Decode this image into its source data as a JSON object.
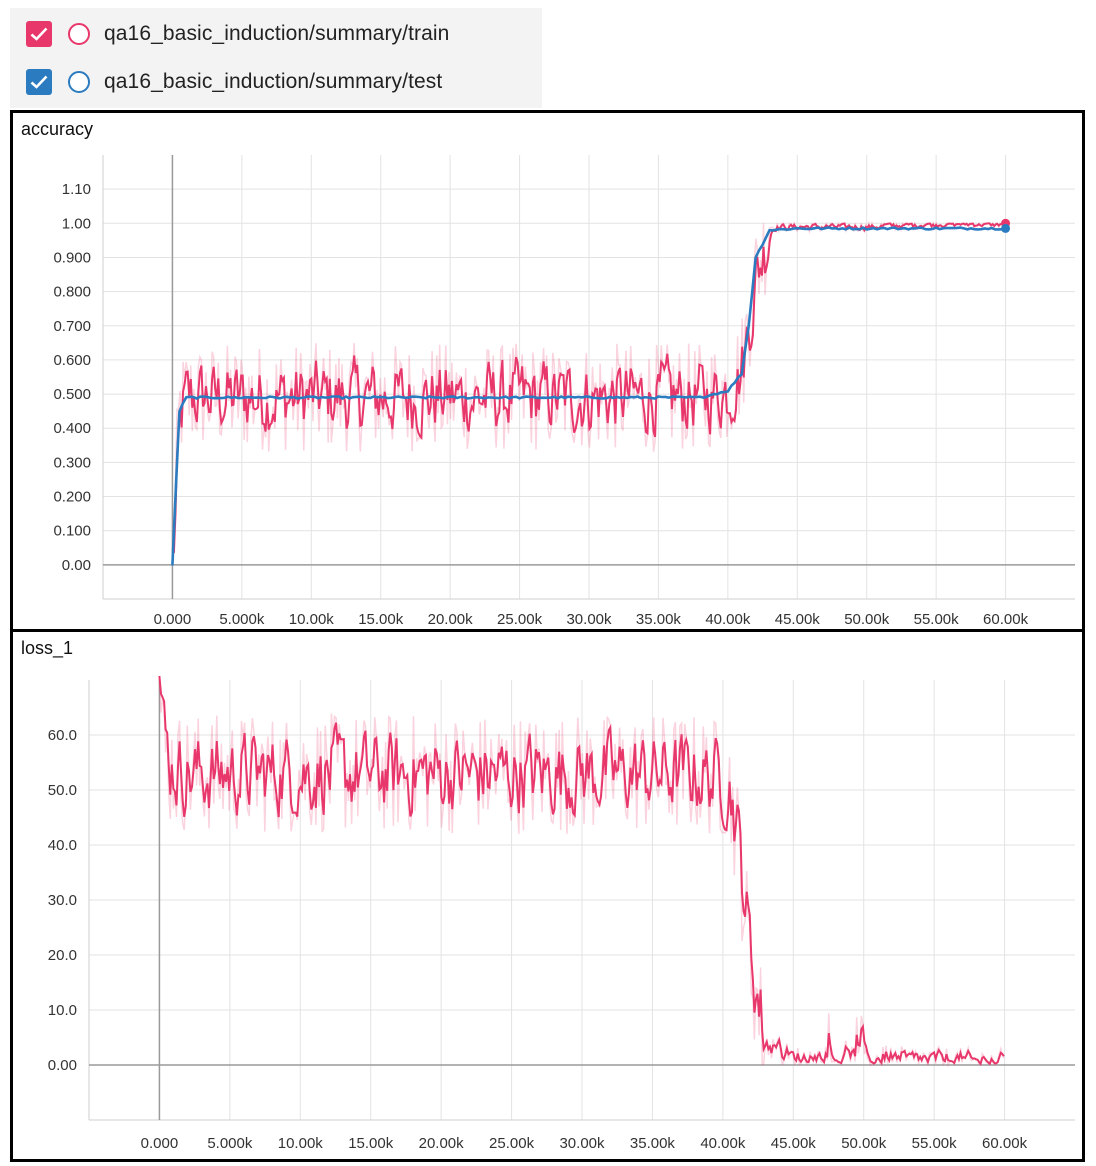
{
  "legend": [
    {
      "label": "qa16_basic_induction/summary/train",
      "color": "#e8376b",
      "checked": true
    },
    {
      "label": "qa16_basic_induction/summary/test",
      "color": "#2a7bbf",
      "checked": true
    }
  ],
  "chart_data": [
    {
      "type": "line",
      "title": "accuracy",
      "xlabel": "",
      "ylabel": "",
      "xlim": [
        -5000,
        65000
      ],
      "ylim": [
        -0.1,
        1.2
      ],
      "x_ticks": [
        0,
        5000,
        10000,
        15000,
        20000,
        25000,
        30000,
        35000,
        40000,
        45000,
        50000,
        55000,
        60000
      ],
      "x_tick_labels": [
        "0.000",
        "5.000k",
        "10.00k",
        "15.00k",
        "20.00k",
        "25.00k",
        "30.00k",
        "35.00k",
        "40.00k",
        "45.00k",
        "50.00k",
        "55.00k",
        "60.00k"
      ],
      "y_ticks": [
        0,
        0.1,
        0.2,
        0.3,
        0.4,
        0.5,
        0.6,
        0.7,
        0.8,
        0.9,
        1.0,
        1.1
      ],
      "y_tick_labels": [
        "0.00",
        "0.100",
        "0.200",
        "0.300",
        "0.400",
        "0.500",
        "0.600",
        "0.700",
        "0.800",
        "0.900",
        "1.00",
        "1.10"
      ],
      "series": [
        {
          "name": "qa16_basic_induction/summary/train",
          "color": "#e8376b",
          "x": [
            0,
            500,
            1000,
            2000,
            5000,
            10000,
            20000,
            30000,
            38000,
            40000,
            41000,
            42000,
            43000,
            45000,
            50000,
            55000,
            60000
          ],
          "y": [
            0.0,
            0.45,
            0.49,
            0.49,
            0.49,
            0.49,
            0.49,
            0.49,
            0.49,
            0.51,
            0.58,
            0.85,
            0.99,
            0.99,
            0.99,
            1.0,
            1.0
          ]
        },
        {
          "name": "qa16_basic_induction/summary/test",
          "color": "#2a7bbf",
          "x": [
            0,
            500,
            1000,
            2000,
            5000,
            10000,
            20000,
            30000,
            38000,
            40000,
            41000,
            41500,
            42000,
            43000,
            45000,
            50000,
            55000,
            60000
          ],
          "y": [
            0.0,
            0.45,
            0.49,
            0.49,
            0.49,
            0.49,
            0.49,
            0.49,
            0.49,
            0.51,
            0.56,
            0.7,
            0.9,
            0.98,
            0.985,
            0.985,
            0.985,
            0.985
          ]
        }
      ]
    },
    {
      "type": "line",
      "title": "loss_1",
      "xlabel": "",
      "ylabel": "",
      "xlim": [
        -5000,
        65000
      ],
      "ylim": [
        -10,
        70
      ],
      "x_ticks": [
        0,
        5000,
        10000,
        15000,
        20000,
        25000,
        30000,
        35000,
        40000,
        45000,
        50000,
        55000,
        60000
      ],
      "x_tick_labels": [
        "0.000",
        "5.000k",
        "10.00k",
        "15.00k",
        "20.00k",
        "25.00k",
        "30.00k",
        "35.00k",
        "40.00k",
        "45.00k",
        "50.00k",
        "55.00k",
        "60.00k"
      ],
      "y_ticks": [
        0,
        10,
        20,
        30,
        40,
        50,
        60
      ],
      "y_tick_labels": [
        "0.00",
        "10.0",
        "20.0",
        "30.0",
        "40.0",
        "50.0",
        "60.0"
      ],
      "series": [
        {
          "name": "qa16_basic_induction/summary/train",
          "color": "#e8376b",
          "x": [
            0,
            300,
            800,
            2000,
            5000,
            10000,
            20000,
            30000,
            38000,
            40000,
            40500,
            41000,
            42000,
            43000,
            45000,
            50000,
            55000,
            60000
          ],
          "y": [
            70,
            58,
            54,
            53,
            53,
            53,
            53,
            53,
            53,
            52,
            50,
            42,
            18,
            4,
            1,
            1,
            0.8,
            0.5
          ]
        }
      ]
    }
  ]
}
